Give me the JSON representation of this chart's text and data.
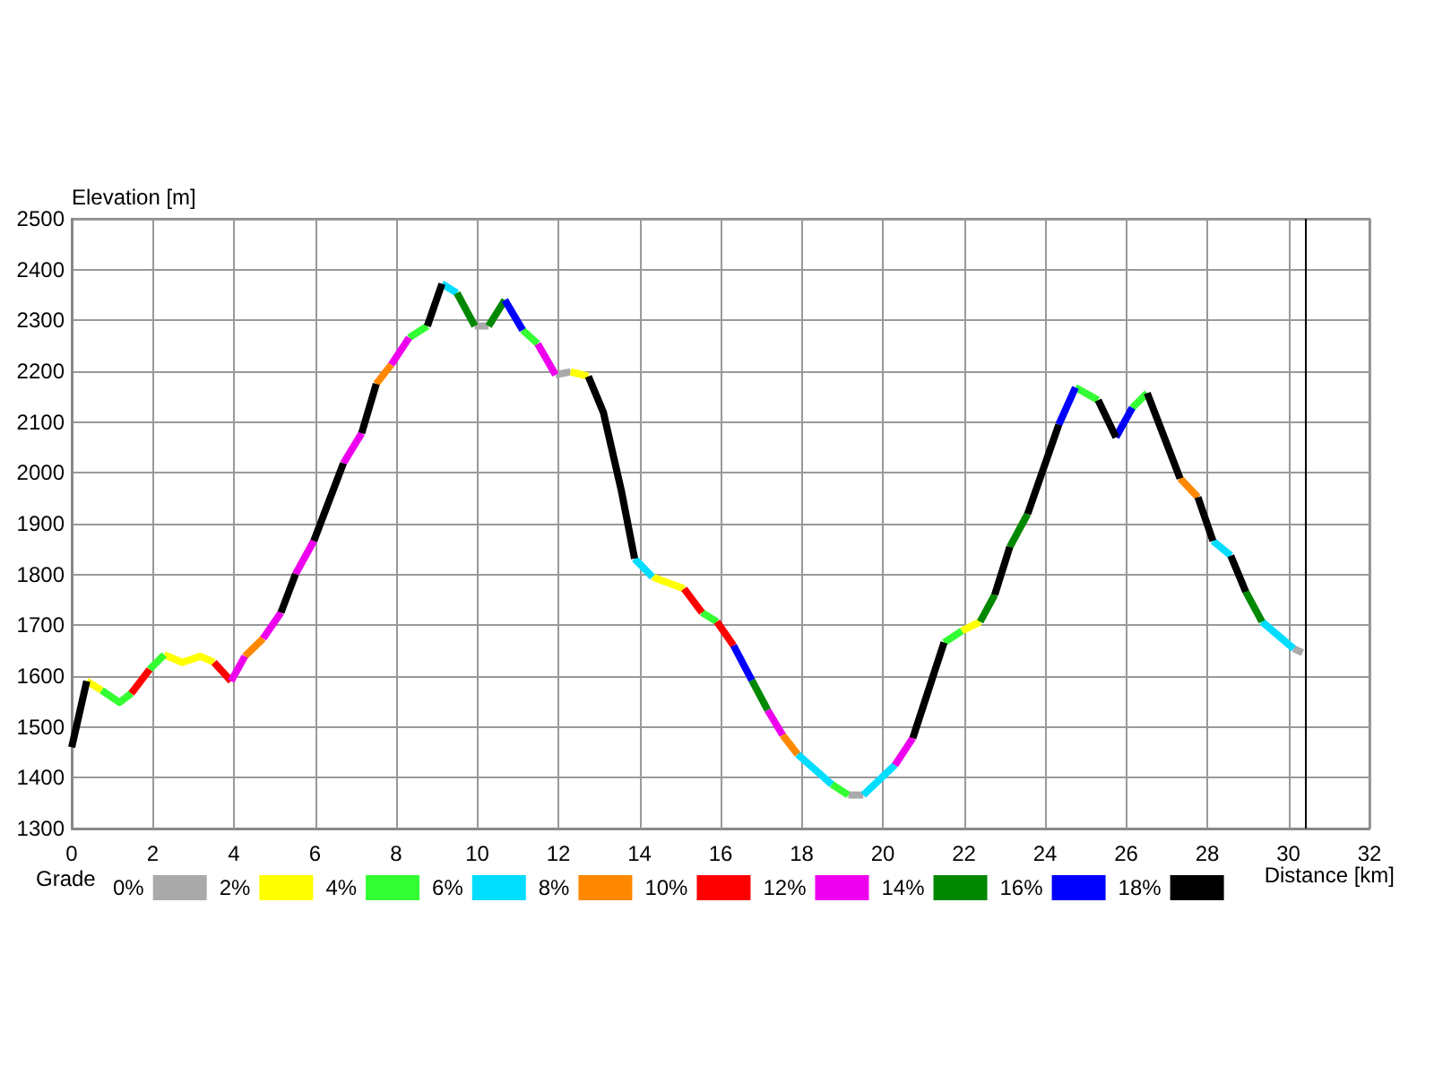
{
  "chart_data": {
    "type": "line",
    "xlabel": "Distance [km]",
    "ylabel": "Elevation [m]",
    "legend_title": "Grade",
    "legend": "bottom",
    "grid": true,
    "marker": "none",
    "xlim": [
      0,
      32
    ],
    "xticks": [
      0,
      2,
      4,
      6,
      8,
      10,
      12,
      14,
      16,
      18,
      20,
      22,
      24,
      26,
      28,
      30,
      32
    ],
    "ylim": [
      1300,
      2500
    ],
    "yticks": [
      1300,
      1400,
      1500,
      1600,
      1700,
      1800,
      1900,
      2000,
      2100,
      2200,
      2300,
      2400,
      2500
    ],
    "ref_lines": [
      {
        "axis": "x",
        "value": 30.4,
        "color": "#000000"
      }
    ],
    "series": [
      {
        "name": "0%",
        "color": "#aaaaaa",
        "x": [
          9.94,
          10.28
        ],
        "values": [
          2289,
          2289
        ]
      },
      {
        "color": "#aaaaaa",
        "x": [
          11.93,
          12.3
        ],
        "values": [
          2193,
          2199
        ]
      },
      {
        "color": "#aaaaaa",
        "x": [
          19.15,
          19.52
        ],
        "values": [
          1366,
          1366
        ]
      },
      {
        "color": "#aaaaaa",
        "x": [
          30.13,
          30.35
        ],
        "values": [
          1654,
          1646
        ]
      },
      {
        "name": "2%",
        "color": "#ffff00",
        "x": [
          0.37,
          0.74
        ],
        "values": [
          1590,
          1572
        ]
      },
      {
        "color": "#ffff00",
        "x": [
          2.28,
          2.73,
          3.17,
          3.51
        ],
        "values": [
          1642,
          1627,
          1639,
          1627
        ]
      },
      {
        "color": "#ffff00",
        "x": [
          12.3,
          12.74
        ],
        "values": [
          2199,
          2190
        ]
      },
      {
        "color": "#ffff00",
        "x": [
          14.32,
          15.1
        ],
        "values": [
          1795,
          1772
        ]
      },
      {
        "color": "#ffff00",
        "x": [
          21.95,
          22.4
        ],
        "values": [
          1689,
          1707
        ]
      },
      {
        "name": "4%",
        "color": "#33ff33",
        "x": [
          0.74,
          1.18,
          1.47
        ],
        "values": [
          1572,
          1548,
          1566
        ]
      },
      {
        "color": "#33ff33",
        "x": [
          1.92,
          2.28
        ],
        "values": [
          1613,
          1642
        ]
      },
      {
        "color": "#33ff33",
        "x": [
          8.32,
          8.77
        ],
        "values": [
          2266,
          2289
        ]
      },
      {
        "color": "#33ff33",
        "x": [
          11.12,
          11.49
        ],
        "values": [
          2281,
          2254
        ]
      },
      {
        "color": "#33ff33",
        "x": [
          15.54,
          15.91
        ],
        "values": [
          1725,
          1707
        ]
      },
      {
        "color": "#33ff33",
        "x": [
          18.74,
          19.15
        ],
        "values": [
          1387,
          1366
        ]
      },
      {
        "color": "#33ff33",
        "x": [
          21.51,
          21.95
        ],
        "values": [
          1666,
          1689
        ]
      },
      {
        "color": "#33ff33",
        "x": [
          24.75,
          25.31
        ],
        "values": [
          2168,
          2143
        ]
      },
      {
        "color": "#33ff33",
        "x": [
          26.15,
          26.52
        ],
        "values": [
          2128,
          2157
        ]
      },
      {
        "name": "6%",
        "color": "#00ddff",
        "x": [
          9.13,
          9.5
        ],
        "values": [
          2372,
          2354
        ]
      },
      {
        "color": "#00ddff",
        "x": [
          13.88,
          14.32
        ],
        "values": [
          1831,
          1795
        ]
      },
      {
        "color": "#00ddff",
        "x": [
          17.9,
          18.74
        ],
        "values": [
          1446,
          1387
        ]
      },
      {
        "color": "#00ddff",
        "x": [
          19.52,
          20.3
        ],
        "values": [
          1366,
          1425
        ]
      },
      {
        "color": "#00ddff",
        "x": [
          28.14,
          28.58
        ],
        "values": [
          1866,
          1837
        ]
      },
      {
        "color": "#00ddff",
        "x": [
          29.35,
          30.13
        ],
        "values": [
          1707,
          1654
        ]
      },
      {
        "name": "8%",
        "color": "#ff8800",
        "x": [
          4.27,
          4.72
        ],
        "values": [
          1639,
          1674
        ]
      },
      {
        "color": "#ff8800",
        "x": [
          7.51,
          7.88
        ],
        "values": [
          2175,
          2213
        ]
      },
      {
        "color": "#ff8800",
        "x": [
          17.53,
          17.9
        ],
        "values": [
          1484,
          1446
        ]
      },
      {
        "color": "#ff8800",
        "x": [
          27.33,
          27.77
        ],
        "values": [
          1989,
          1952
        ]
      },
      {
        "name": "10%",
        "color": "#ff0000",
        "x": [
          1.47,
          1.92
        ],
        "values": [
          1566,
          1613
        ]
      },
      {
        "color": "#ff0000",
        "x": [
          3.51,
          3.93
        ],
        "values": [
          1627,
          1590
        ]
      },
      {
        "color": "#ff0000",
        "x": [
          15.1,
          15.54
        ],
        "values": [
          1772,
          1725
        ]
      },
      {
        "color": "#ff0000",
        "x": [
          15.91,
          16.32
        ],
        "values": [
          1707,
          1660
        ]
      },
      {
        "name": "12%",
        "color": "#ee00ee",
        "x": [
          3.93,
          4.27
        ],
        "values": [
          1590,
          1639
        ]
      },
      {
        "color": "#ee00ee",
        "x": [
          4.72,
          5.16
        ],
        "values": [
          1674,
          1725
        ]
      },
      {
        "color": "#ee00ee",
        "x": [
          5.52,
          5.97
        ],
        "values": [
          1801,
          1866
        ]
      },
      {
        "color": "#ee00ee",
        "x": [
          6.7,
          7.15
        ],
        "values": [
          2019,
          2078
        ]
      },
      {
        "color": "#ee00ee",
        "x": [
          7.88,
          8.32
        ],
        "values": [
          2213,
          2266
        ]
      },
      {
        "color": "#ee00ee",
        "x": [
          11.49,
          11.93
        ],
        "values": [
          2254,
          2193
        ]
      },
      {
        "color": "#ee00ee",
        "x": [
          17.16,
          17.53
        ],
        "values": [
          1533,
          1484
        ]
      },
      {
        "color": "#ee00ee",
        "x": [
          20.3,
          20.74
        ],
        "values": [
          1425,
          1478
        ]
      },
      {
        "name": "14%",
        "color": "#008800",
        "x": [
          9.5,
          9.94
        ],
        "values": [
          2354,
          2289
        ]
      },
      {
        "color": "#008800",
        "x": [
          10.28,
          10.68
        ],
        "values": [
          2289,
          2340
        ]
      },
      {
        "color": "#008800",
        "x": [
          16.77,
          17.16
        ],
        "values": [
          1592,
          1533
        ]
      },
      {
        "color": "#008800",
        "x": [
          22.4,
          22.76
        ],
        "values": [
          1707,
          1760
        ]
      },
      {
        "color": "#008800",
        "x": [
          23.13,
          23.57
        ],
        "values": [
          1854,
          1919
        ]
      },
      {
        "color": "#008800",
        "x": [
          28.95,
          29.35
        ],
        "values": [
          1766,
          1707
        ]
      },
      {
        "name": "16%",
        "color": "#0000ff",
        "x": [
          10.68,
          11.12
        ],
        "values": [
          2340,
          2281
        ]
      },
      {
        "color": "#0000ff",
        "x": [
          16.32,
          16.77
        ],
        "values": [
          1660,
          1592
        ]
      },
      {
        "color": "#0000ff",
        "x": [
          24.34,
          24.75
        ],
        "values": [
          2095,
          2168
        ]
      },
      {
        "color": "#0000ff",
        "x": [
          25.75,
          26.15
        ],
        "values": [
          2070,
          2128
        ]
      },
      {
        "name": "18%",
        "color": "#000000",
        "x": [
          0,
          0.37
        ],
        "values": [
          1460,
          1590
        ]
      },
      {
        "color": "#000000",
        "x": [
          5.16,
          5.52
        ],
        "values": [
          1725,
          1801
        ]
      },
      {
        "color": "#000000",
        "x": [
          5.97,
          6.7
        ],
        "values": [
          1866,
          2019
        ]
      },
      {
        "color": "#000000",
        "x": [
          7.15,
          7.51
        ],
        "values": [
          2078,
          2175
        ]
      },
      {
        "color": "#000000",
        "x": [
          8.77,
          9.13
        ],
        "values": [
          2289,
          2372
        ]
      },
      {
        "color": "#000000",
        "x": [
          12.74,
          13.11,
          13.55,
          13.88
        ],
        "values": [
          2190,
          2119,
          1966,
          1831
        ]
      },
      {
        "color": "#000000",
        "x": [
          20.74,
          21.51
        ],
        "values": [
          1478,
          1666
        ]
      },
      {
        "color": "#000000",
        "x": [
          22.76,
          23.13
        ],
        "values": [
          1760,
          1854
        ]
      },
      {
        "color": "#000000",
        "x": [
          23.57,
          24.34
        ],
        "values": [
          1919,
          2095
        ]
      },
      {
        "color": "#000000",
        "x": [
          25.31,
          25.75
        ],
        "values": [
          2143,
          2070
        ]
      },
      {
        "color": "#000000",
        "x": [
          26.52,
          27.33
        ],
        "values": [
          2157,
          1989
        ]
      },
      {
        "color": "#000000",
        "x": [
          27.77,
          28.14
        ],
        "values": [
          1952,
          1866
        ]
      },
      {
        "color": "#000000",
        "x": [
          28.58,
          28.95
        ],
        "values": [
          1837,
          1766
        ]
      }
    ]
  }
}
